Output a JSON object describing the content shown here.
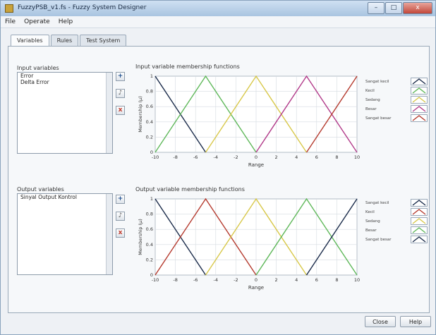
{
  "window": {
    "title": "FuzzyPSB_v1.fs - Fuzzy System Designer",
    "icon": "app-icon"
  },
  "window_buttons": {
    "minimize": "–",
    "maximize": "□",
    "close": "x"
  },
  "menu": [
    "File",
    "Operate",
    "Help"
  ],
  "tabs": [
    "Variables",
    "Rules",
    "Test System"
  ],
  "input_section": {
    "label": "Input variables",
    "items": [
      "Error",
      "Delta Error"
    ],
    "chart_title": "Input variable membership functions"
  },
  "output_section": {
    "label": "Output variables",
    "items": [
      "Sinyal Output Kontrol"
    ],
    "chart_title": "Output variable membership functions"
  },
  "buttons": {
    "add": "+",
    "edit": "♪",
    "delete": "x",
    "ok": "Close",
    "help": "Help"
  },
  "icons": {
    "add": "plus-icon",
    "edit": "edit-icon",
    "delete": "delete-icon"
  },
  "colors": {
    "accent": "#c2473a"
  },
  "chart_data": [
    {
      "type": "line",
      "title": "Input variable membership functions",
      "xlabel": "Range",
      "ylabel": "Membership (μ)",
      "xlim": [
        -10,
        10
      ],
      "ylim": [
        0,
        1
      ],
      "xticks": [
        "-10",
        "-8",
        "-6",
        "-4",
        "-2",
        "0",
        "2",
        "4",
        "6",
        "8",
        "10"
      ],
      "yticks": [
        "0",
        "0.2",
        "0.4",
        "0.6",
        "0.8",
        "1"
      ],
      "grid": true,
      "legend_position": "right",
      "series": [
        {
          "name": "Sangat kecil",
          "color": "#1a2b4a",
          "x": [
            -10,
            -5
          ],
          "y": [
            1,
            0
          ]
        },
        {
          "name": "Kecil",
          "color": "#5fb85a",
          "x": [
            -10,
            -5,
            0
          ],
          "y": [
            0,
            1,
            0
          ]
        },
        {
          "name": "Sedang",
          "color": "#d8c84a",
          "x": [
            -5,
            0,
            5
          ],
          "y": [
            0,
            1,
            0
          ]
        },
        {
          "name": "Besar",
          "color": "#b23b8a",
          "x": [
            0,
            5,
            10
          ],
          "y": [
            0,
            1,
            0
          ]
        },
        {
          "name": "Sangat besar",
          "color": "#b53a2e",
          "x": [
            5,
            10
          ],
          "y": [
            0,
            1
          ]
        }
      ]
    },
    {
      "type": "line",
      "title": "Output variable membership functions",
      "xlabel": "Range",
      "ylabel": "Membership (μ)",
      "xlim": [
        -10,
        10
      ],
      "ylim": [
        0,
        1
      ],
      "xticks": [
        "-10",
        "-8",
        "-6",
        "-4",
        "-2",
        "0",
        "2",
        "4",
        "6",
        "8",
        "10"
      ],
      "yticks": [
        "0",
        "0.2",
        "0.4",
        "0.6",
        "0.8",
        "1"
      ],
      "grid": true,
      "legend_position": "right",
      "series": [
        {
          "name": "Sangat kecil",
          "color": "#1a2b4a",
          "x": [
            -10,
            -5
          ],
          "y": [
            1,
            0
          ]
        },
        {
          "name": "Kecil",
          "color": "#b53a2e",
          "x": [
            -10,
            -5,
            0
          ],
          "y": [
            0,
            1,
            0
          ]
        },
        {
          "name": "Sedang",
          "color": "#d8c84a",
          "x": [
            -5,
            0,
            5
          ],
          "y": [
            0,
            1,
            0
          ]
        },
        {
          "name": "Besar",
          "color": "#5fb85a",
          "x": [
            0,
            5,
            10
          ],
          "y": [
            0,
            1,
            0
          ]
        },
        {
          "name": "Sangat besar",
          "color": "#1a2b4a",
          "x": [
            5,
            10
          ],
          "y": [
            0,
            1
          ]
        }
      ]
    }
  ]
}
